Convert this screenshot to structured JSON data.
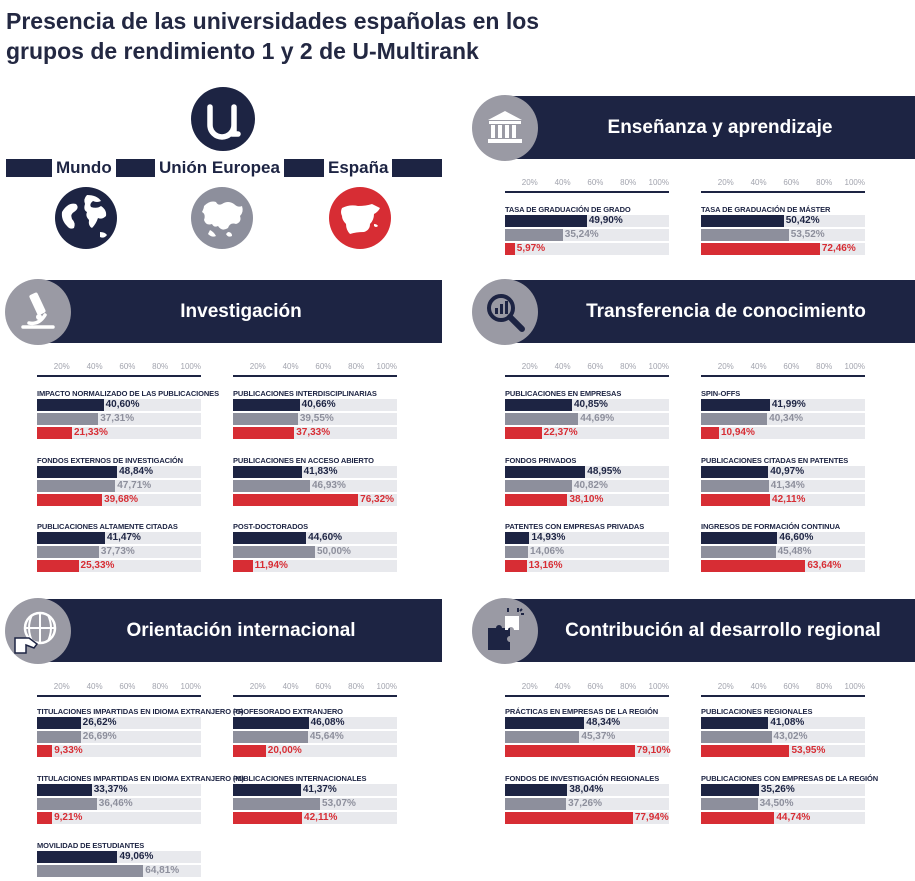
{
  "title_line1": "Presencia de las universidades españolas en los",
  "title_line2": "grupos de rendimiento 1 y 2 de U-Multirank",
  "logo_letter": "u",
  "legend": {
    "mundo": "Mundo",
    "ue": "Unión Europea",
    "espana": "España"
  },
  "colors": {
    "mundo": "#1d2443",
    "ue": "#8d8f9c",
    "espana": "#d72d34",
    "band": "#1d2443",
    "track": "#e8e9ed"
  },
  "sections": {
    "ensenanza": "Enseñanza y aprendizaje",
    "investigacion": "Investigación",
    "transferencia": "Transferencia de conocimiento",
    "orientacion": "Orientación internacional",
    "contribucion": "Contribución al desarrollo regional"
  },
  "scale_ticks": [
    "20%",
    "40%",
    "60%",
    "80%",
    "100%"
  ],
  "chart_data": [
    {
      "type": "bar",
      "title": "Enseñanza y aprendizaje",
      "series_names": [
        "Mundo",
        "Unión Europea",
        "España"
      ],
      "ylim": [
        0,
        100
      ],
      "metrics": [
        {
          "name": "TASA DE GRADUACIÓN DE GRADO",
          "values": [
            49.9,
            35.24,
            5.97
          ],
          "labels": [
            "49,90%",
            "35,24%",
            "5,97%"
          ]
        },
        {
          "name": "TASA DE GRADUACIÓN DE MÁSTER",
          "values": [
            50.42,
            53.52,
            72.46
          ],
          "labels": [
            "50,42%",
            "53,52%",
            "72,46%"
          ]
        }
      ]
    },
    {
      "type": "bar",
      "title": "Investigación",
      "series_names": [
        "Mundo",
        "Unión Europea",
        "España"
      ],
      "ylim": [
        0,
        100
      ],
      "metrics": [
        {
          "name": "IMPACTO NORMALIZADO DE LAS PUBLICACIONES",
          "values": [
            40.6,
            37.31,
            21.33
          ],
          "labels": [
            "40,60%",
            "37,31%",
            "21,33%"
          ]
        },
        {
          "name": "PUBLICACIONES INTERDISCIPLINARIAS",
          "values": [
            40.66,
            39.55,
            37.33
          ],
          "labels": [
            "40,66%",
            "39,55%",
            "37,33%"
          ]
        },
        {
          "name": "FONDOS EXTERNOS DE INVESTIGACIÓN",
          "values": [
            48.84,
            47.71,
            39.68
          ],
          "labels": [
            "48,84%",
            "47,71%",
            "39,68%"
          ]
        },
        {
          "name": "PUBLICACIONES EN ACCESO ABIERTO",
          "values": [
            41.83,
            46.93,
            76.32
          ],
          "labels": [
            "41,83%",
            "46,93%",
            "76,32%"
          ]
        },
        {
          "name": "PUBLICACIONES ALTAMENTE CITADAS",
          "values": [
            41.47,
            37.73,
            25.33
          ],
          "labels": [
            "41,47%",
            "37,73%",
            "25,33%"
          ]
        },
        {
          "name": "POST-DOCTORADOS",
          "values": [
            44.6,
            50.0,
            11.94
          ],
          "labels": [
            "44,60%",
            "50,00%",
            "11,94%"
          ]
        }
      ]
    },
    {
      "type": "bar",
      "title": "Transferencia de conocimiento",
      "series_names": [
        "Mundo",
        "Unión Europea",
        "España"
      ],
      "ylim": [
        0,
        100
      ],
      "metrics": [
        {
          "name": "PUBLICACIONES EN EMPRESAS",
          "values": [
            40.85,
            44.69,
            22.37
          ],
          "labels": [
            "40,85%",
            "44,69%",
            "22,37%"
          ]
        },
        {
          "name": "SPIN-OFFS",
          "values": [
            41.99,
            40.34,
            10.94
          ],
          "labels": [
            "41,99%",
            "40,34%",
            "10,94%"
          ]
        },
        {
          "name": "FONDOS PRIVADOS",
          "values": [
            48.95,
            40.82,
            38.1
          ],
          "labels": [
            "48,95%",
            "40,82%",
            "38,10%"
          ]
        },
        {
          "name": "PUBLICACIONES CITADAS EN PATENTES",
          "values": [
            40.97,
            41.34,
            42.11
          ],
          "labels": [
            "40,97%",
            "41,34%",
            "42,11%"
          ]
        },
        {
          "name": "PATENTES CON EMPRESAS PRIVADAS",
          "values": [
            14.93,
            14.06,
            13.16
          ],
          "labels": [
            "14,93%",
            "14,06%",
            "13,16%"
          ]
        },
        {
          "name": "INGRESOS DE FORMACIÓN CONTINUA",
          "values": [
            46.6,
            45.48,
            63.64
          ],
          "labels": [
            "46,60%",
            "45,48%",
            "63,64%"
          ]
        }
      ]
    },
    {
      "type": "bar",
      "title": "Orientación internacional",
      "series_names": [
        "Mundo",
        "Unión Europea",
        "España"
      ],
      "ylim": [
        0,
        100
      ],
      "metrics": [
        {
          "name": "TITULACIONES IMPARTIDAS EN IDIOMA EXTRANJERO (G)",
          "values": [
            26.62,
            26.69,
            9.33
          ],
          "labels": [
            "26,62%",
            "26,69%",
            "9,33%"
          ]
        },
        {
          "name": "PROFESORADO EXTRANJERO",
          "values": [
            46.08,
            45.64,
            20.0
          ],
          "labels": [
            "46,08%",
            "45,64%",
            "20,00%"
          ]
        },
        {
          "name": "TITULACIONES IMPARTIDAS EN IDIOMA EXTRANJERO (M)",
          "values": [
            33.37,
            36.46,
            9.21
          ],
          "labels": [
            "33,37%",
            "36,46%",
            "9,21%"
          ]
        },
        {
          "name": "PUBLICACIONES INTERNACIONALES",
          "values": [
            41.37,
            53.07,
            42.11
          ],
          "labels": [
            "41,37%",
            "53,07%",
            "42,11%"
          ]
        },
        {
          "name": "MOVILIDAD DE ESTUDIANTES",
          "values": [
            49.06,
            64.81
          ],
          "labels": [
            "49,06%",
            "64,81%"
          ]
        }
      ]
    },
    {
      "type": "bar",
      "title": "Contribución al desarrollo regional",
      "series_names": [
        "Mundo",
        "Unión Europea",
        "España"
      ],
      "ylim": [
        0,
        100
      ],
      "metrics": [
        {
          "name": "PRÁCTICAS EN EMPRESAS DE LA REGIÓN",
          "values": [
            48.34,
            45.37,
            79.1
          ],
          "labels": [
            "48,34%",
            "45,37%",
            "79,10%"
          ]
        },
        {
          "name": "PUBLICACIONES REGIONALES",
          "values": [
            41.08,
            43.02,
            53.95
          ],
          "labels": [
            "41,08%",
            "43,02%",
            "53,95%"
          ]
        },
        {
          "name": "FONDOS DE INVESTIGACIÓN REGIONALES",
          "values": [
            38.04,
            37.26,
            77.94
          ],
          "labels": [
            "38,04%",
            "37,26%",
            "77,94%"
          ]
        },
        {
          "name": "PUBLICACIONES CON EMPRESAS DE LA REGIÓN",
          "values": [
            35.26,
            34.5,
            44.74
          ],
          "labels": [
            "35,26%",
            "34,50%",
            "44,74%"
          ]
        }
      ]
    }
  ]
}
